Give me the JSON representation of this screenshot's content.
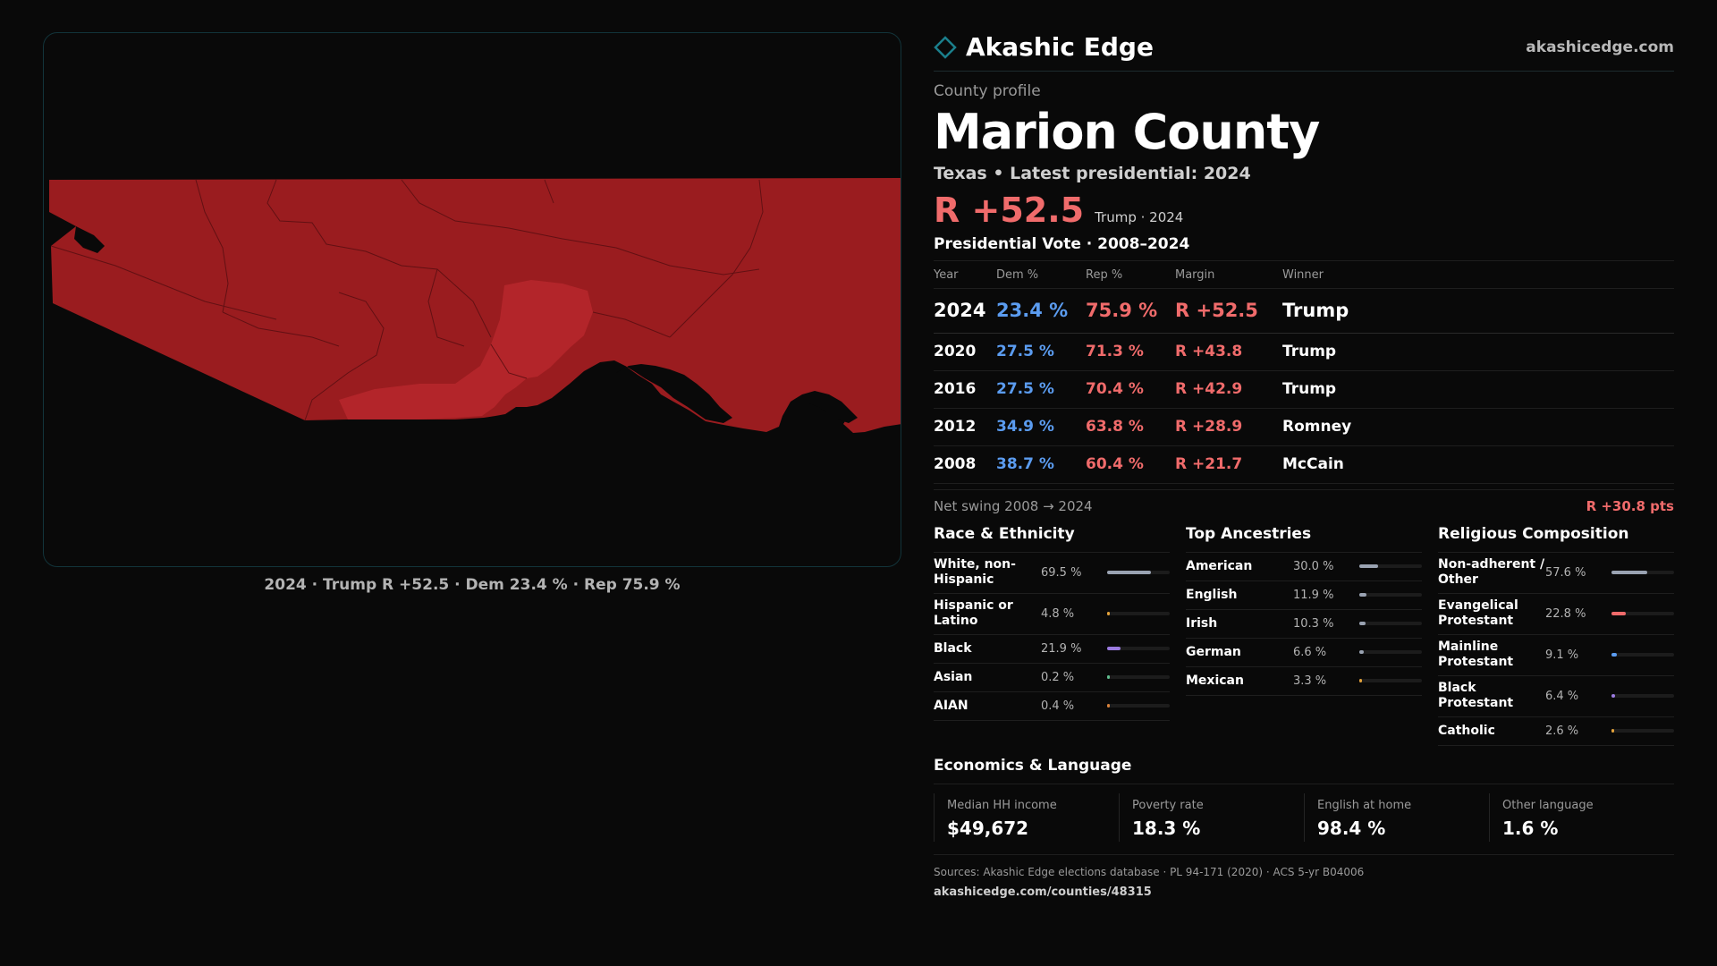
{
  "brand": {
    "name": "Akashic Edge",
    "url": "akashicedge.com",
    "accent": "#1b7f8c"
  },
  "map": {
    "caption": "2024 · Trump R +52.5 · Dem 23.4 % · Rep 75.9 %",
    "fill_color": "#9a1c1f",
    "highlight_color": "#b3252a"
  },
  "profile": {
    "eyebrow": "County profile",
    "title": "Marion County",
    "subtitle": "Texas • Latest presidential: 2024",
    "margin": "R +52.5",
    "margin_note": "Trump · 2024"
  },
  "vote": {
    "title": "Presidential Vote · 2008–2024",
    "headers": [
      "Year",
      "Dem %",
      "Rep %",
      "Margin",
      "Winner"
    ],
    "rows": [
      {
        "year": "2024",
        "dem": "23.4 %",
        "rep": "75.9 %",
        "margin": "R +52.5",
        "winner": "Trump"
      },
      {
        "year": "2020",
        "dem": "27.5 %",
        "rep": "71.3 %",
        "margin": "R +43.8",
        "winner": "Trump"
      },
      {
        "year": "2016",
        "dem": "27.5 %",
        "rep": "70.4 %",
        "margin": "R +42.9",
        "winner": "Trump"
      },
      {
        "year": "2012",
        "dem": "34.9 %",
        "rep": "63.8 %",
        "margin": "R +28.9",
        "winner": "Romney"
      },
      {
        "year": "2008",
        "dem": "38.7 %",
        "rep": "60.4 %",
        "margin": "R +21.7",
        "winner": "McCain"
      }
    ],
    "swing_label": "Net swing 2008 → 2024",
    "swing_value": "R +30.8 pts"
  },
  "race": {
    "title": "Race & Ethnicity",
    "items": [
      {
        "label": "White, non-Hispanic",
        "value": "69.5 %",
        "pct": 69.5,
        "color": "#9aa3b2"
      },
      {
        "label": "Hispanic or Latino",
        "value": "4.8 %",
        "pct": 4.8,
        "color": "#e3a23b"
      },
      {
        "label": "Black",
        "value": "21.9 %",
        "pct": 21.9,
        "color": "#9b7be0"
      },
      {
        "label": "Asian",
        "value": "0.2 %",
        "pct": 0.2,
        "color": "#5fbf8f"
      },
      {
        "label": "AIAN",
        "value": "0.4 %",
        "pct": 0.4,
        "color": "#d9823b"
      }
    ]
  },
  "ancestry": {
    "title": "Top Ancestries",
    "items": [
      {
        "label": "American",
        "value": "30.0 %",
        "pct": 30.0,
        "color": "#9aa3b2"
      },
      {
        "label": "English",
        "value": "11.9 %",
        "pct": 11.9,
        "color": "#9aa3b2"
      },
      {
        "label": "Irish",
        "value": "10.3 %",
        "pct": 10.3,
        "color": "#9aa3b2"
      },
      {
        "label": "German",
        "value": "6.6 %",
        "pct": 6.6,
        "color": "#9aa3b2"
      },
      {
        "label": "Mexican",
        "value": "3.3 %",
        "pct": 3.3,
        "color": "#e3a23b"
      }
    ]
  },
  "religion": {
    "title": "Religious Composition",
    "items": [
      {
        "label": "Non-adherent / Other",
        "value": "57.6 %",
        "pct": 57.6,
        "color": "#9aa3b2"
      },
      {
        "label": "Evangelical Protestant",
        "value": "22.8 %",
        "pct": 22.8,
        "color": "#f06b6b"
      },
      {
        "label": "Mainline Protestant",
        "value": "9.1 %",
        "pct": 9.1,
        "color": "#5b9cf0"
      },
      {
        "label": "Black Protestant",
        "value": "6.4 %",
        "pct": 6.4,
        "color": "#9b7be0"
      },
      {
        "label": "Catholic",
        "value": "2.6 %",
        "pct": 2.6,
        "color": "#e3a23b"
      }
    ]
  },
  "economics": {
    "title": "Economics & Language",
    "cells": [
      {
        "label": "Median HH income",
        "value": "$49,672"
      },
      {
        "label": "Poverty rate",
        "value": "18.3 %"
      },
      {
        "label": "English at home",
        "value": "98.4 %"
      },
      {
        "label": "Other language",
        "value": "1.6 %"
      }
    ]
  },
  "sources": {
    "text": "Sources: Akashic Edge elections database · PL 94-171 (2020) · ACS 5-yr B04006",
    "link": "akashicedge.com/counties/48315"
  }
}
